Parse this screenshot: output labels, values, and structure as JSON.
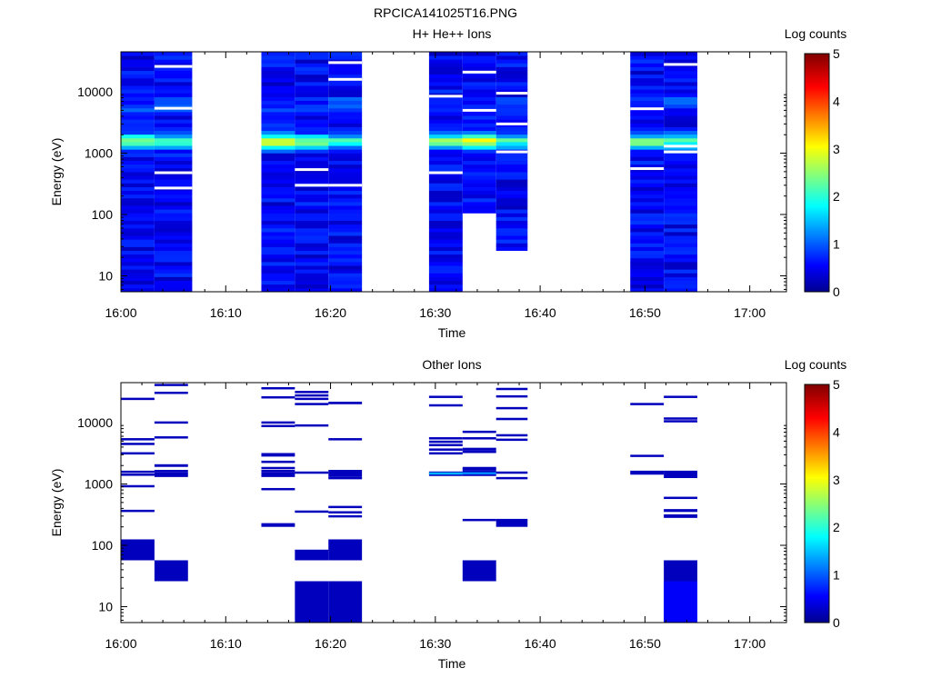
{
  "file_title": "RPCICA141025T16.PNG",
  "chart_data": [
    {
      "type": "heatmap",
      "title": "H+ He++ Ions",
      "xlabel": "Time",
      "ylabel": "Energy (eV)",
      "x_ticks": [
        "16:00",
        "16:10",
        "16:20",
        "16:30",
        "16:40",
        "16:50",
        "17:00"
      ],
      "x_tick_minutes": [
        0,
        10,
        20,
        30,
        40,
        50,
        60
      ],
      "xlim_minutes": [
        0,
        63.5
      ],
      "y_scale": "log",
      "ylim": [
        5.5,
        45000
      ],
      "y_ticks": [
        "10",
        "100",
        "1000",
        "10000"
      ],
      "y_tick_values": [
        10,
        100,
        1000,
        10000
      ],
      "colorbar": {
        "label": "Log counts",
        "ticks": [
          "0",
          "1",
          "2",
          "3",
          "4",
          "5"
        ],
        "range": [
          0,
          5
        ],
        "colormap": "jet"
      },
      "grid": false,
      "time_bins_minutes": [
        [
          0,
          3.2
        ],
        [
          3.2,
          6.8
        ],
        [
          13.4,
          16.6
        ],
        [
          16.6,
          19.8
        ],
        [
          19.8,
          23.0
        ],
        [
          29.4,
          32.6
        ],
        [
          32.6,
          35.8
        ],
        [
          35.8,
          38.8
        ],
        [
          48.6,
          51.8
        ],
        [
          51.8,
          55.0
        ]
      ],
      "peak_energy_ev": 1550,
      "peak_log_counts": [
        2.3,
        2.0,
        2.7,
        2.1,
        2.0,
        2.4,
        2.8,
        1.9,
        2.1,
        1.9
      ],
      "low_energy_cutoff_ev": [
        5.5,
        5.5,
        5.5,
        5.5,
        5.5,
        5.5,
        120,
        27,
        5.5,
        5.5
      ],
      "background_log_counts": 0.3,
      "gaps": [
        {
          "bin": 1,
          "energy_ev": [
            480,
            270,
            5400,
            26000
          ]
        },
        {
          "bin": 3,
          "energy_ev": [
            300,
            540
          ]
        },
        {
          "bin": 4,
          "energy_ev": [
            300,
            30000,
            16000
          ]
        },
        {
          "bin": 5,
          "energy_ev": [
            480,
            8500
          ]
        },
        {
          "bin": 6,
          "energy_ev": [
            21000,
            5000
          ]
        },
        {
          "bin": 7,
          "energy_ev": [
            1050,
            9500,
            3000
          ]
        },
        {
          "bin": 8,
          "energy_ev": [
            560,
            5300
          ]
        },
        {
          "bin": 9,
          "energy_ev": [
            1050,
            1300,
            28000
          ]
        }
      ]
    },
    {
      "type": "heatmap",
      "title": "Other Ions",
      "xlabel": "Time",
      "ylabel": "Energy (eV)",
      "x_ticks": [
        "16:00",
        "16:10",
        "16:20",
        "16:30",
        "16:40",
        "16:50",
        "17:00"
      ],
      "x_tick_minutes": [
        0,
        10,
        20,
        30,
        40,
        50,
        60
      ],
      "xlim_minutes": [
        0,
        63.5
      ],
      "y_scale": "log",
      "ylim": [
        5.5,
        45000
      ],
      "y_ticks": [
        "10",
        "100",
        "1000",
        "10000"
      ],
      "y_tick_values": [
        10,
        100,
        1000,
        10000
      ],
      "colorbar": {
        "label": "Log counts",
        "ticks": [
          "0",
          "1",
          "2",
          "3",
          "4",
          "5"
        ],
        "range": [
          0,
          5
        ],
        "colormap": "jet"
      },
      "grid": false,
      "cells": [
        {
          "t": [
            0,
            3.2
          ],
          "e": [
            [
              24500,
              25500
            ],
            [
              5300,
              5600
            ],
            [
              4400,
              4700
            ],
            [
              3100,
              3300
            ],
            [
              1550,
              1650
            ],
            [
              1420,
              1480
            ],
            [
              920,
              960
            ],
            [
              360,
              380
            ],
            [
              57,
              125
            ]
          ],
          "v": 0.3
        },
        {
          "t": [
            3.2,
            6.4
          ],
          "e": [
            [
              41000,
              43000
            ],
            [
              30000,
              32000
            ],
            [
              10000,
              10500
            ],
            [
              5700,
              6000
            ],
            [
              1900,
              2100
            ],
            [
              1550,
              1700
            ],
            [
              1300,
              1550
            ],
            [
              26,
              57
            ]
          ],
          "v": 0.3
        },
        {
          "t": [
            13.4,
            16.6
          ],
          "e": [
            [
              36000,
              38000
            ],
            [
              26000,
              27000
            ],
            [
              10000,
              10500
            ],
            [
              8800,
              9200
            ],
            [
              2800,
              3200
            ],
            [
              2200,
              2400
            ],
            [
              1800,
              1900
            ],
            [
              1550,
              1700
            ],
            [
              1300,
              1550
            ],
            [
              820,
              860
            ],
            [
              200,
              230
            ]
          ],
          "v": 0.3
        },
        {
          "t": [
            16.6,
            19.8
          ],
          "e": [
            [
              31000,
              33000
            ],
            [
              27000,
              29000
            ],
            [
              24000,
              25500
            ],
            [
              20000,
              21000
            ],
            [
              9000,
              9400
            ],
            [
              1500,
              1600
            ],
            [
              350,
              370
            ],
            [
              57,
              85
            ],
            [
              5.5,
              26
            ]
          ],
          "v": 0.3
        },
        {
          "t": [
            19.8,
            23.0
          ],
          "e": [
            [
              20000,
              22000
            ],
            [
              5300,
              5600
            ],
            [
              1300,
              1700
            ],
            [
              1200,
              1300
            ],
            [
              410,
              440
            ],
            [
              340,
              360
            ],
            [
              290,
              310
            ],
            [
              57,
              125
            ],
            [
              5.5,
              26
            ]
          ],
          "v": 0.3
        },
        {
          "t": [
            29.4,
            32.6
          ],
          "e": [
            [
              26000,
              27500
            ],
            [
              19000,
              20000
            ],
            [
              5500,
              5800
            ],
            [
              4800,
              5100
            ],
            [
              4200,
              4500
            ],
            [
              3500,
              3800
            ],
            [
              3100,
              3300
            ],
            [
              1500,
              1600
            ],
            [
              1350,
              1500
            ]
          ],
          "v": 0.3
        },
        {
          "t": [
            29.4,
            32.6
          ],
          "e": [
            [
              1450,
              1550
            ]
          ],
          "v": 1.5
        },
        {
          "t": [
            32.6,
            35.8
          ],
          "e": [
            [
              6800,
              7400
            ],
            [
              5500,
              5800
            ],
            [
              3500,
              3900
            ],
            [
              3200,
              3500
            ],
            [
              1800,
              1900
            ],
            [
              1650,
              1800
            ],
            [
              1550,
              1650
            ],
            [
              1350,
              1500
            ],
            [
              255,
              270
            ],
            [
              26,
              57
            ]
          ],
          "v": 0.3
        },
        {
          "t": [
            32.6,
            35.8
          ],
          "e": [
            [
              1500,
              1560
            ]
          ],
          "v": 1.3
        },
        {
          "t": [
            35.8,
            38.8
          ],
          "e": [
            [
              34000,
              37000
            ],
            [
              26000,
              28000
            ],
            [
              17000,
              18000
            ],
            [
              11000,
              12000
            ],
            [
              6200,
              6500
            ],
            [
              5200,
              5500
            ],
            [
              1500,
              1600
            ],
            [
              1200,
              1300
            ],
            [
              200,
              270
            ]
          ],
          "v": 0.3
        },
        {
          "t": [
            48.6,
            51.8
          ],
          "e": [
            [
              20000,
              21000
            ],
            [
              2800,
              3000
            ],
            [
              1420,
              1650
            ]
          ],
          "v": 0.3
        },
        {
          "t": [
            51.8,
            55.0
          ],
          "e": [
            [
              26000,
              27500
            ],
            [
              11600,
              12200
            ],
            [
              10500,
              11000
            ],
            [
              1250,
              1650
            ],
            [
              580,
              620
            ],
            [
              350,
              390
            ],
            [
              280,
              320
            ],
            [
              26,
              57
            ],
            [
              5.5,
              26
            ]
          ],
          "v": 0.3
        },
        {
          "t": [
            51.8,
            55.0
          ],
          "e": [
            [
              5.5,
              26
            ]
          ],
          "v": 0.6
        }
      ]
    }
  ]
}
